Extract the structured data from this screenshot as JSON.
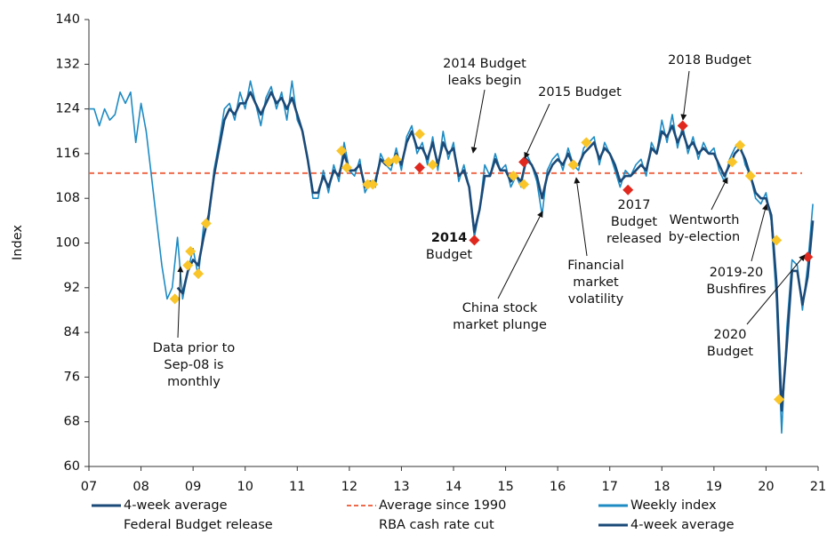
{
  "chart_data": {
    "type": "line",
    "y_label": "Index",
    "ylim": [
      60,
      140
    ],
    "yticks": [
      60,
      68,
      76,
      84,
      92,
      100,
      108,
      116,
      124,
      132,
      140
    ],
    "xlim": [
      7,
      21
    ],
    "xticks": [
      {
        "value": 7,
        "label": "07"
      },
      {
        "value": 8,
        "label": "08"
      },
      {
        "value": 9,
        "label": "09"
      },
      10,
      11,
      12,
      13,
      14,
      15,
      16,
      17,
      18,
      19,
      20,
      21
    ],
    "x": [
      7.0,
      7.1,
      7.2,
      7.3,
      7.4,
      7.5,
      7.6,
      7.7,
      7.8,
      7.9,
      8.0,
      8.1,
      8.2,
      8.3,
      8.4,
      8.5,
      8.6,
      8.7,
      8.8,
      8.9,
      9.0,
      9.1,
      9.2,
      9.3,
      9.4,
      9.5,
      9.6,
      9.7,
      9.8,
      9.9,
      10.0,
      10.1,
      10.2,
      10.3,
      10.4,
      10.5,
      10.6,
      10.7,
      10.8,
      10.9,
      11.0,
      11.1,
      11.2,
      11.3,
      11.4,
      11.5,
      11.6,
      11.7,
      11.8,
      11.9,
      12.0,
      12.1,
      12.2,
      12.3,
      12.4,
      12.5,
      12.6,
      12.7,
      12.8,
      12.9,
      13.0,
      13.1,
      13.2,
      13.3,
      13.4,
      13.5,
      13.6,
      13.7,
      13.8,
      13.9,
      14.0,
      14.1,
      14.2,
      14.3,
      14.4,
      14.5,
      14.6,
      14.7,
      14.8,
      14.9,
      15.0,
      15.1,
      15.2,
      15.3,
      15.4,
      15.5,
      15.6,
      15.7,
      15.8,
      15.9,
      16.0,
      16.1,
      16.2,
      16.3,
      16.4,
      16.5,
      16.6,
      16.7,
      16.8,
      16.9,
      17.0,
      17.1,
      17.2,
      17.3,
      17.4,
      17.5,
      17.6,
      17.7,
      17.8,
      17.9,
      18.0,
      18.1,
      18.2,
      18.3,
      18.4,
      18.5,
      18.6,
      18.7,
      18.8,
      18.9,
      19.0,
      19.1,
      19.2,
      19.3,
      19.4,
      19.5,
      19.6,
      19.7,
      19.8,
      19.9,
      20.0,
      20.1,
      20.2,
      20.3,
      20.4,
      20.5,
      20.6,
      20.7,
      20.8,
      20.9
    ],
    "series": [
      {
        "name": "Weekly index",
        "color": "#1e8bc3",
        "width": 1.6,
        "values": [
          124,
          124,
          121,
          124,
          122,
          123,
          127,
          125,
          127,
          118,
          125,
          120,
          112,
          104,
          96,
          90,
          92,
          101,
          90,
          95,
          99,
          94,
          103,
          104,
          113,
          118,
          124,
          125,
          122,
          127,
          124,
          129,
          125,
          121,
          126,
          128,
          124,
          127,
          122,
          129,
          122,
          120,
          115,
          108,
          108,
          113,
          109,
          114,
          111,
          118,
          113,
          112,
          115,
          109,
          111,
          110,
          116,
          114,
          113,
          117,
          113,
          119,
          121,
          116,
          118,
          114,
          119,
          113,
          120,
          115,
          118,
          111,
          114,
          110,
          101,
          106,
          114,
          112,
          116,
          113,
          114,
          110,
          112,
          110,
          116,
          114,
          111,
          105,
          113,
          115,
          116,
          113,
          117,
          114,
          113,
          117,
          118,
          119,
          114,
          118,
          116,
          113,
          110,
          113,
          112,
          114,
          115,
          112,
          118,
          116,
          122,
          118,
          123,
          117,
          121,
          116,
          119,
          115,
          118,
          116,
          117,
          113,
          111,
          115,
          117,
          118,
          114,
          112,
          108,
          107,
          109,
          104,
          90,
          66,
          85,
          97,
          96,
          88,
          96,
          107
        ]
      },
      {
        "name": "4-week average",
        "color": "#1b4a78",
        "width": 2.6,
        "values": [
          null,
          null,
          null,
          null,
          null,
          null,
          null,
          null,
          null,
          null,
          null,
          null,
          null,
          null,
          null,
          null,
          null,
          92,
          91,
          95,
          97,
          96,
          101,
          105,
          112,
          117,
          122,
          124,
          123,
          125,
          125,
          127,
          125,
          123,
          125,
          127,
          125,
          126,
          124,
          126,
          123,
          120,
          115,
          109,
          109,
          112,
          110,
          113,
          112,
          116,
          113,
          113,
          114,
          110,
          111,
          111,
          115,
          114,
          114,
          116,
          114,
          118,
          120,
          117,
          117,
          115,
          118,
          114,
          118,
          116,
          117,
          112,
          113,
          110,
          102,
          106,
          112,
          112,
          115,
          113,
          113,
          111,
          112,
          111,
          115,
          114,
          112,
          108,
          112,
          114,
          115,
          114,
          116,
          114,
          114,
          116,
          117,
          118,
          115,
          117,
          116,
          114,
          111,
          112,
          112,
          113,
          114,
          113,
          117,
          116,
          120,
          119,
          121,
          118,
          120,
          117,
          118,
          116,
          117,
          116,
          116,
          114,
          112,
          114,
          116,
          117,
          115,
          112,
          109,
          108,
          108,
          105,
          93,
          70,
          82,
          95,
          95,
          89,
          94,
          104
        ]
      }
    ],
    "average": {
      "name": "Average since 1990",
      "color": "#ee6a4a",
      "value": 112.5
    },
    "markers": [
      {
        "name": "Federal Budget release",
        "color": "#e0281e",
        "x": [
          13.35,
          14.4,
          15.35,
          16.3,
          17.35,
          18.4,
          20.8
        ],
        "values": [
          113.5,
          100.5,
          114.5,
          114,
          109.5,
          121,
          97.5
        ]
      },
      {
        "name": "RBA cash rate cut",
        "color": "#f9c529",
        "x": [
          8.65,
          8.9,
          8.95,
          9.1,
          9.25,
          11.85,
          11.95,
          12.35,
          12.45,
          12.75,
          12.9,
          13.35,
          13.6,
          15.15,
          15.35,
          16.3,
          16.55,
          19.35,
          19.5,
          19.7,
          20.2,
          20.25
        ],
        "values": [
          90,
          96,
          98.5,
          94.5,
          103.5,
          116.5,
          113.5,
          110.5,
          110.5,
          114.5,
          115,
          119.5,
          114,
          112,
          110.5,
          114,
          118,
          114.5,
          117.5,
          112,
          100.5,
          72
        ]
      }
    ],
    "annotations": [
      {
        "lines": [
          "Data prior to",
          "Sep-08 is",
          "monthly"
        ]
      },
      {
        "lines": [
          "2014 Budget",
          "leaks begin"
        ]
      },
      {
        "lines": [
          "2015 Budget"
        ]
      },
      {
        "lines": [
          "2018 Budget"
        ]
      },
      {
        "lines": [
          "2014",
          "Budget"
        ]
      },
      {
        "lines": [
          "China stock",
          "market plunge"
        ]
      },
      {
        "lines": [
          "Financial",
          "market",
          "volatility"
        ]
      },
      {
        "lines": [
          "2017",
          "Budget",
          "released"
        ]
      },
      {
        "lines": [
          "Wentworth",
          "by-election"
        ]
      },
      {
        "lines": [
          "2019-20",
          "Bushfires"
        ]
      },
      {
        "lines": [
          "2020",
          "Budget"
        ]
      }
    ],
    "legend": [
      {
        "name": "4-week average",
        "color": "#1b4a78"
      },
      {
        "name": "Average since 1990",
        "color": "#ee6a4a",
        "dash": true
      },
      {
        "name": "Weekly index",
        "color": "#1e8bc3"
      },
      {
        "name": "Federal Budget release"
      },
      {
        "name": "RBA cash rate cut"
      },
      {
        "name": "4-week average",
        "color": "#1b4a78"
      }
    ]
  }
}
